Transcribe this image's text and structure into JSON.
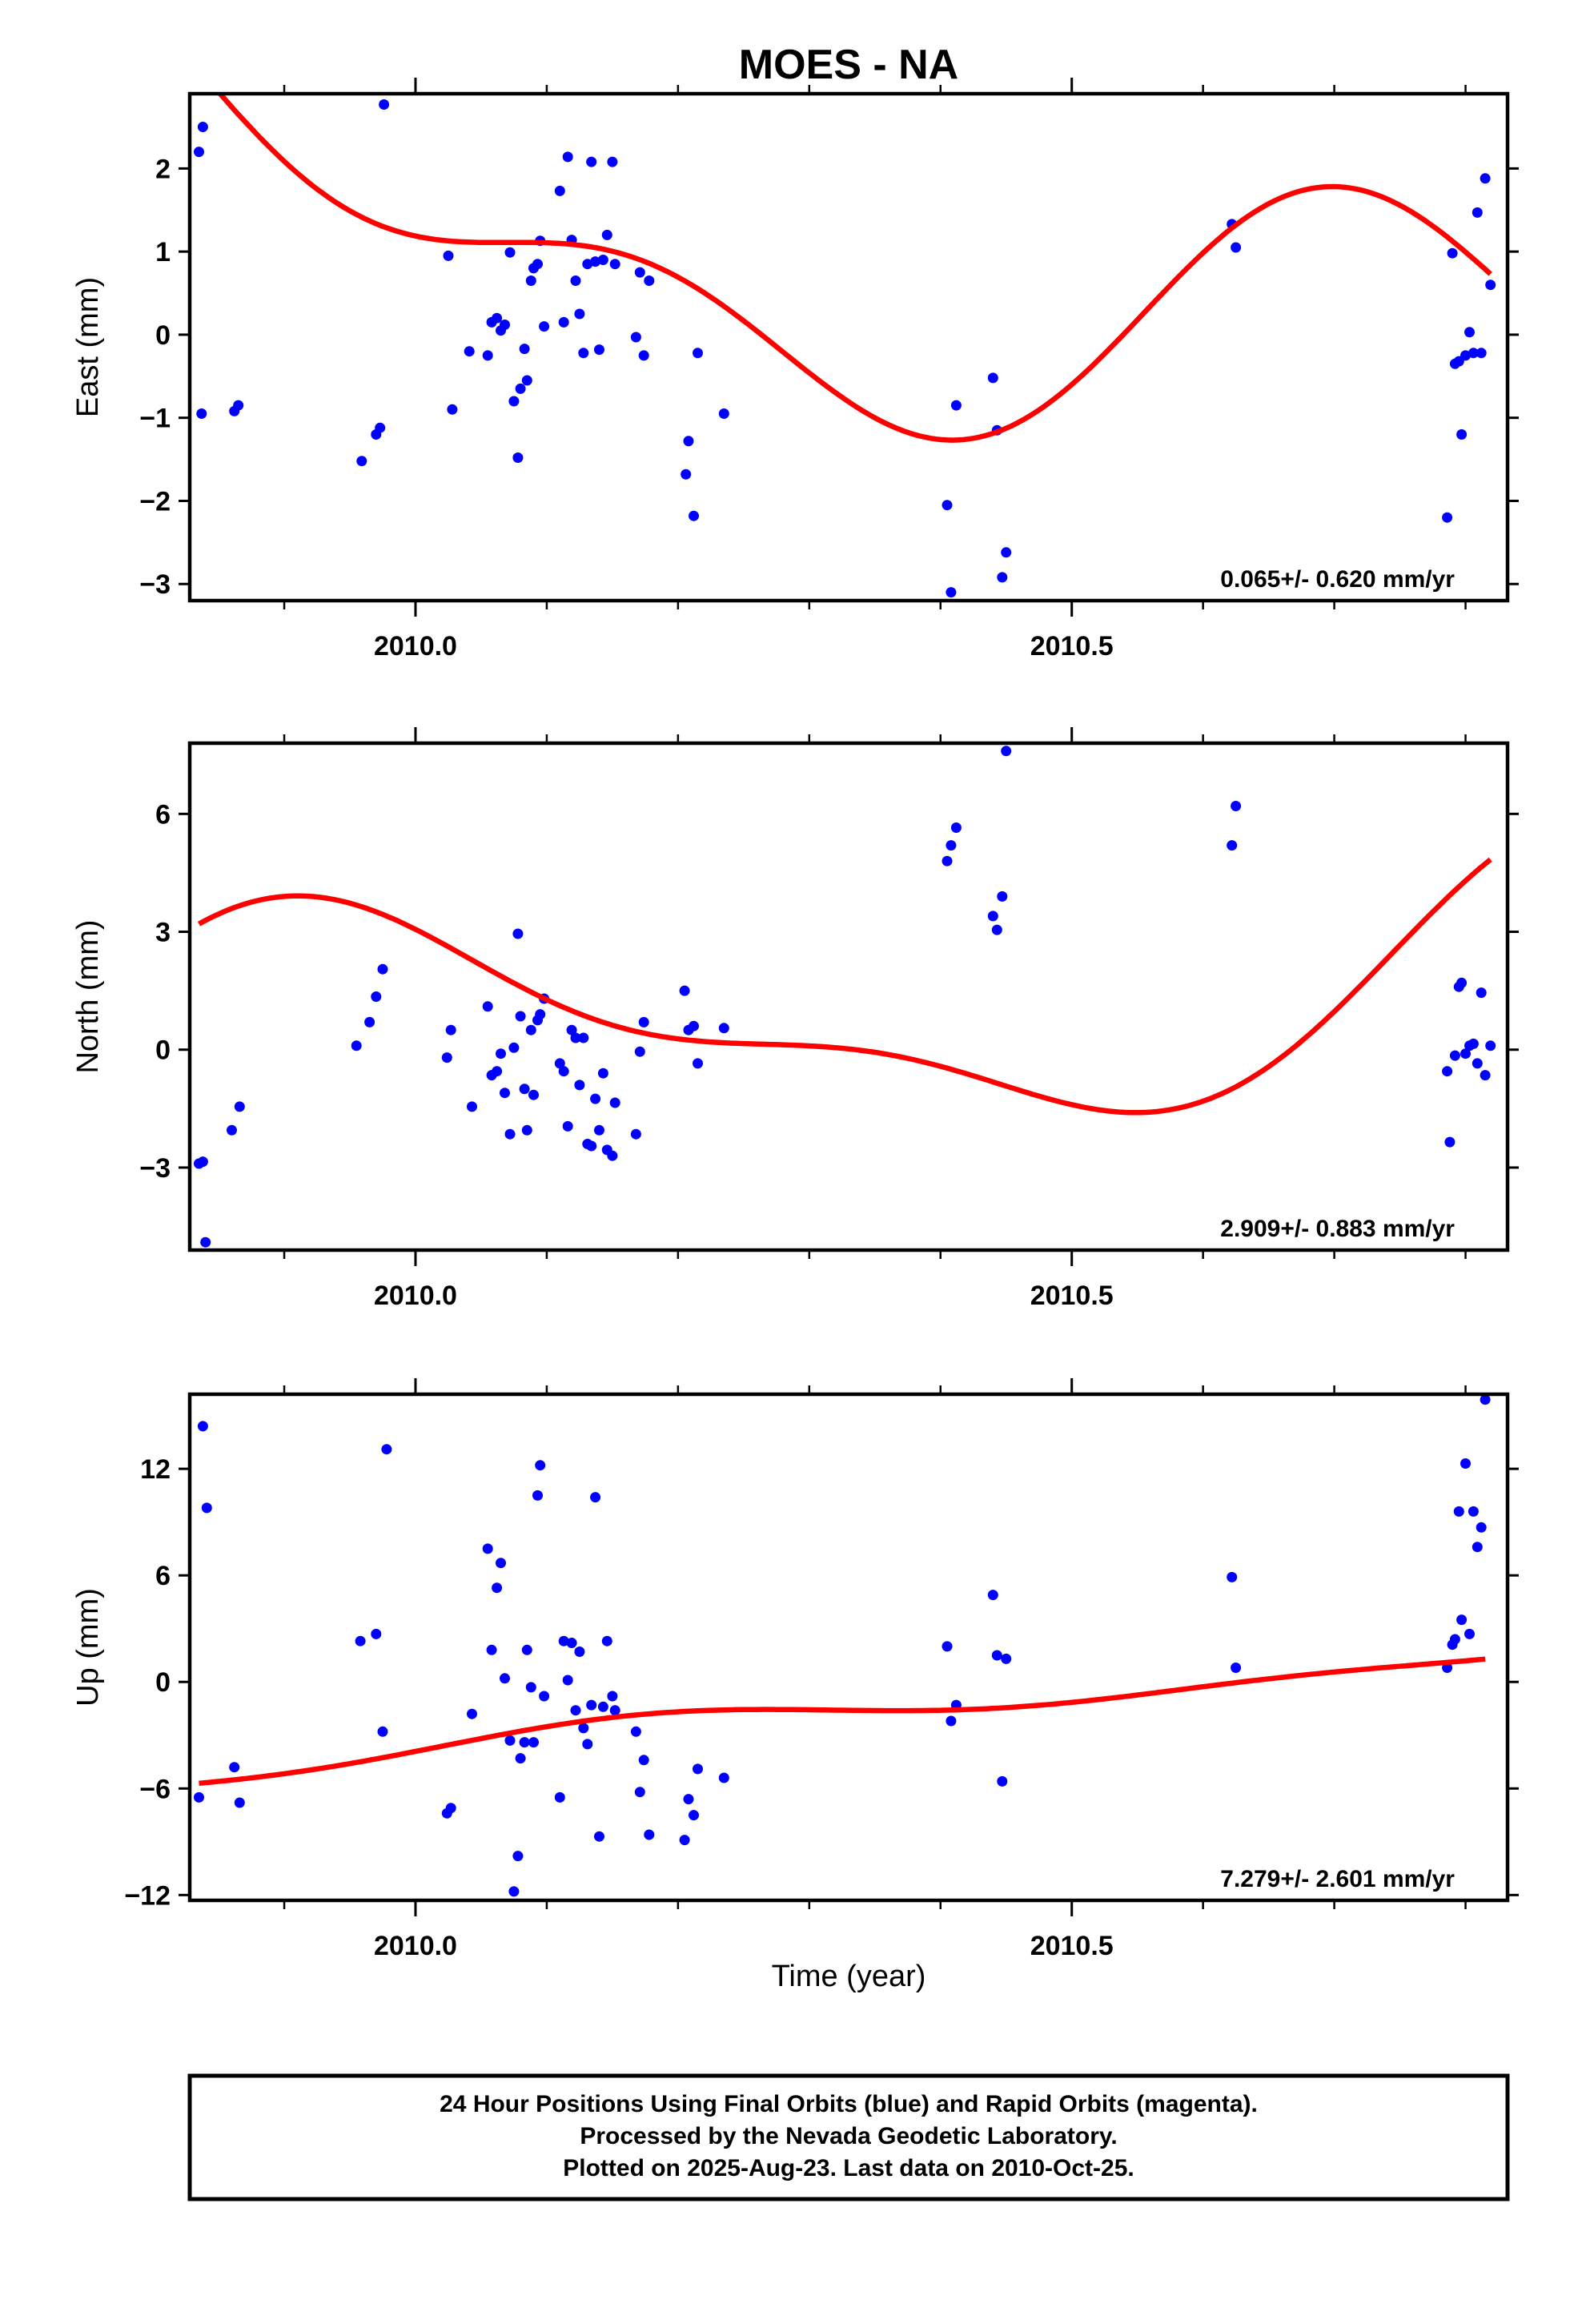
{
  "title": "MOES - NA",
  "xlabel": "Time (year)",
  "footer": {
    "lines": [
      "24 Hour Positions Using Final Orbits (blue) and Rapid Orbits (magenta).",
      "Processed by the Nevada Geodetic Laboratory.",
      "Plotted on 2025-Aug-23. Last data on 2010-Oct-25."
    ]
  },
  "colors": {
    "points": "#0000ff",
    "fit": "#ff0000",
    "frame": "#000000"
  },
  "chart_data": [
    {
      "type": "scatter",
      "title": "MOES - NA",
      "ylabel": "East (mm)",
      "rate_label": "0.065+/- 0.620 mm/yr",
      "xlim": [
        2009.828,
        2010.832
      ],
      "ylim": [
        -3.2,
        2.9
      ],
      "yticks": [
        2,
        1,
        0,
        -1,
        -2,
        -3
      ],
      "ytick_labels": [
        "2",
        "1",
        "0",
        "−1",
        "−2",
        "−3"
      ],
      "xticks_major": [
        2010.0,
        2010.5
      ],
      "xtick_labels": [
        "2010.0",
        "2010.5"
      ],
      "xticks_minor": [
        2009.9,
        2010.1,
        2010.2,
        2010.3,
        2010.4,
        2010.6,
        2010.7,
        2010.8
      ],
      "points": [
        [
          2009.835,
          2.2
        ],
        [
          2009.838,
          2.5
        ],
        [
          2009.837,
          -0.95
        ],
        [
          2009.862,
          -0.92
        ],
        [
          2009.865,
          -0.85
        ],
        [
          2009.976,
          2.77
        ],
        [
          2009.959,
          -1.52
        ],
        [
          2009.97,
          -1.2
        ],
        [
          2009.973,
          -1.12
        ],
        [
          2010.025,
          0.95
        ],
        [
          2010.028,
          -0.9
        ],
        [
          2010.041,
          -0.2
        ],
        [
          2010.055,
          -0.25
        ],
        [
          2010.058,
          0.15
        ],
        [
          2010.062,
          0.2
        ],
        [
          2010.065,
          0.05
        ],
        [
          2010.068,
          0.12
        ],
        [
          2010.072,
          0.99
        ],
        [
          2010.075,
          -0.8
        ],
        [
          2010.078,
          -1.48
        ],
        [
          2010.08,
          -0.65
        ],
        [
          2010.083,
          -0.17
        ],
        [
          2010.085,
          -0.55
        ],
        [
          2010.088,
          0.65
        ],
        [
          2010.09,
          0.8
        ],
        [
          2010.093,
          0.85
        ],
        [
          2010.095,
          1.13
        ],
        [
          2010.098,
          0.1
        ],
        [
          2010.11,
          1.73
        ],
        [
          2010.113,
          0.15
        ],
        [
          2010.116,
          2.14
        ],
        [
          2010.119,
          1.14
        ],
        [
          2010.122,
          0.65
        ],
        [
          2010.125,
          0.25
        ],
        [
          2010.128,
          -0.22
        ],
        [
          2010.131,
          0.85
        ],
        [
          2010.134,
          2.08
        ],
        [
          2010.137,
          0.88
        ],
        [
          2010.14,
          -0.18
        ],
        [
          2010.143,
          0.9
        ],
        [
          2010.146,
          1.2
        ],
        [
          2010.15,
          2.08
        ],
        [
          2010.152,
          0.85
        ],
        [
          2010.168,
          -0.03
        ],
        [
          2010.171,
          0.75
        ],
        [
          2010.174,
          -0.25
        ],
        [
          2010.178,
          0.65
        ],
        [
          2010.208,
          -1.28
        ],
        [
          2010.206,
          -1.68
        ],
        [
          2010.212,
          -2.18
        ],
        [
          2010.215,
          -0.22
        ],
        [
          2010.235,
          -0.95
        ],
        [
          2010.405,
          -2.05
        ],
        [
          2010.408,
          -3.1
        ],
        [
          2010.412,
          -0.85
        ],
        [
          2010.44,
          -0.52
        ],
        [
          2010.443,
          -1.15
        ],
        [
          2010.447,
          -2.92
        ],
        [
          2010.45,
          -2.62
        ],
        [
          2010.622,
          1.33
        ],
        [
          2010.625,
          1.05
        ],
        [
          2010.786,
          -2.2
        ],
        [
          2010.79,
          0.98
        ],
        [
          2010.792,
          -0.35
        ],
        [
          2010.795,
          -0.32
        ],
        [
          2010.797,
          -1.2
        ],
        [
          2010.8,
          -0.25
        ],
        [
          2010.803,
          0.03
        ],
        [
          2010.806,
          -0.22
        ],
        [
          2010.809,
          1.47
        ],
        [
          2010.812,
          -0.22
        ],
        [
          2010.815,
          1.88
        ],
        [
          2010.819,
          0.6
        ]
      ],
      "fit": {
        "a": 0.15,
        "b": -2.0,
        "c": 1.8,
        "d": -0.3,
        "A1": 1.2,
        "B1": -0.15,
        "A2": 0.65,
        "B2": -0.6
      }
    },
    {
      "type": "scatter",
      "ylabel": "North (mm)",
      "rate_label": "2.909+/- 0.883 mm/yr",
      "xlim": [
        2009.828,
        2010.832
      ],
      "ylim": [
        -5.1,
        7.8
      ],
      "yticks": [
        6,
        3,
        0,
        -3
      ],
      "ytick_labels": [
        "6",
        "3",
        "0",
        "−3"
      ],
      "xticks_major": [
        2010.0,
        2010.5
      ],
      "xtick_labels": [
        "2010.0",
        "2010.5"
      ],
      "xticks_minor": [
        2009.9,
        2010.1,
        2010.2,
        2010.3,
        2010.4,
        2010.6,
        2010.7,
        2010.8
      ],
      "points": [
        [
          2009.835,
          -2.9
        ],
        [
          2009.838,
          -2.85
        ],
        [
          2009.84,
          -4.9
        ],
        [
          2009.86,
          -2.05
        ],
        [
          2009.866,
          -1.45
        ],
        [
          2009.955,
          0.1
        ],
        [
          2009.965,
          0.7
        ],
        [
          2009.97,
          1.35
        ],
        [
          2009.975,
          2.05
        ],
        [
          2010.024,
          -0.2
        ],
        [
          2010.027,
          0.5
        ],
        [
          2010.043,
          -1.45
        ],
        [
          2010.055,
          1.1
        ],
        [
          2010.058,
          -0.65
        ],
        [
          2010.062,
          -0.55
        ],
        [
          2010.065,
          -0.1
        ],
        [
          2010.068,
          -1.1
        ],
        [
          2010.072,
          -2.15
        ],
        [
          2010.075,
          0.05
        ],
        [
          2010.078,
          2.95
        ],
        [
          2010.08,
          0.85
        ],
        [
          2010.083,
          -1.0
        ],
        [
          2010.085,
          -2.05
        ],
        [
          2010.088,
          0.5
        ],
        [
          2010.09,
          -1.15
        ],
        [
          2010.093,
          0.75
        ],
        [
          2010.095,
          0.9
        ],
        [
          2010.098,
          1.3
        ],
        [
          2010.11,
          -0.35
        ],
        [
          2010.113,
          -0.55
        ],
        [
          2010.116,
          -1.95
        ],
        [
          2010.119,
          0.5
        ],
        [
          2010.122,
          0.3
        ],
        [
          2010.125,
          -0.9
        ],
        [
          2010.128,
          0.3
        ],
        [
          2010.131,
          -2.4
        ],
        [
          2010.134,
          -2.45
        ],
        [
          2010.137,
          -1.25
        ],
        [
          2010.14,
          -2.05
        ],
        [
          2010.143,
          -0.6
        ],
        [
          2010.146,
          -2.55
        ],
        [
          2010.15,
          -2.7
        ],
        [
          2010.152,
          -1.35
        ],
        [
          2010.168,
          -2.15
        ],
        [
          2010.171,
          -0.05
        ],
        [
          2010.174,
          0.7
        ],
        [
          2010.205,
          1.5
        ],
        [
          2010.208,
          0.5
        ],
        [
          2010.212,
          0.6
        ],
        [
          2010.215,
          -0.35
        ],
        [
          2010.235,
          0.55
        ],
        [
          2010.405,
          4.8
        ],
        [
          2010.408,
          5.2
        ],
        [
          2010.412,
          5.65
        ],
        [
          2010.44,
          3.4
        ],
        [
          2010.443,
          3.05
        ],
        [
          2010.447,
          3.9
        ],
        [
          2010.45,
          7.6
        ],
        [
          2010.622,
          5.2
        ],
        [
          2010.625,
          6.2
        ],
        [
          2010.786,
          -0.55
        ],
        [
          2010.788,
          -2.35
        ],
        [
          2010.792,
          -0.15
        ],
        [
          2010.795,
          1.6
        ],
        [
          2010.797,
          1.7
        ],
        [
          2010.8,
          -0.1
        ],
        [
          2010.803,
          0.1
        ],
        [
          2010.806,
          0.15
        ],
        [
          2010.809,
          -0.35
        ],
        [
          2010.812,
          1.45
        ],
        [
          2010.815,
          -0.65
        ],
        [
          2010.819,
          0.1
        ]
      ],
      "fit": {
        "a": 1.3,
        "b": 3.1,
        "c": 1.7,
        "d": -1.5,
        "A1": 0.5,
        "B1": -2.7,
        "A2": -1.1,
        "B2": 0.0
      }
    },
    {
      "type": "scatter",
      "ylabel": "Up (mm)",
      "rate_label": "7.279+/- 2.601 mm/yr",
      "xlim": [
        2009.828,
        2010.832
      ],
      "ylim": [
        -12.3,
        16.2
      ],
      "yticks": [
        12,
        6,
        0,
        -6,
        -12
      ],
      "ytick_labels": [
        "12",
        "6",
        "0",
        "−6",
        "−12"
      ],
      "xticks_major": [
        2010.0,
        2010.5
      ],
      "xtick_labels": [
        "2010.0",
        "2010.5"
      ],
      "xticks_minor": [
        2009.9,
        2010.1,
        2010.2,
        2010.3,
        2010.4,
        2010.6,
        2010.7,
        2010.8
      ],
      "points": [
        [
          2009.835,
          -6.5
        ],
        [
          2009.838,
          14.4
        ],
        [
          2009.841,
          9.8
        ],
        [
          2009.862,
          -4.8
        ],
        [
          2009.866,
          -6.8
        ],
        [
          2009.958,
          2.3
        ],
        [
          2009.97,
          2.7
        ],
        [
          2009.975,
          -2.8
        ],
        [
          2009.978,
          13.1
        ],
        [
          2010.024,
          -7.4
        ],
        [
          2010.027,
          -7.1
        ],
        [
          2010.043,
          -1.8
        ],
        [
          2010.055,
          7.5
        ],
        [
          2010.058,
          1.8
        ],
        [
          2010.062,
          5.3
        ],
        [
          2010.065,
          6.7
        ],
        [
          2010.068,
          0.2
        ],
        [
          2010.072,
          -3.3
        ],
        [
          2010.075,
          -11.8
        ],
        [
          2010.078,
          -9.8
        ],
        [
          2010.08,
          -4.3
        ],
        [
          2010.083,
          -3.4
        ],
        [
          2010.085,
          1.8
        ],
        [
          2010.088,
          -0.3
        ],
        [
          2010.09,
          -3.4
        ],
        [
          2010.093,
          10.5
        ],
        [
          2010.095,
          12.2
        ],
        [
          2010.098,
          -0.8
        ],
        [
          2010.11,
          -6.5
        ],
        [
          2010.113,
          2.3
        ],
        [
          2010.116,
          0.1
        ],
        [
          2010.119,
          2.2
        ],
        [
          2010.122,
          -1.6
        ],
        [
          2010.125,
          1.7
        ],
        [
          2010.128,
          -2.6
        ],
        [
          2010.131,
          -3.5
        ],
        [
          2010.134,
          -1.3
        ],
        [
          2010.137,
          10.4
        ],
        [
          2010.14,
          -8.7
        ],
        [
          2010.143,
          -1.4
        ],
        [
          2010.146,
          2.3
        ],
        [
          2010.15,
          -0.8
        ],
        [
          2010.152,
          -1.6
        ],
        [
          2010.168,
          -2.8
        ],
        [
          2010.171,
          -6.2
        ],
        [
          2010.174,
          -4.4
        ],
        [
          2010.178,
          -8.6
        ],
        [
          2010.205,
          -8.9
        ],
        [
          2010.208,
          -6.6
        ],
        [
          2010.212,
          -7.5
        ],
        [
          2010.215,
          -4.9
        ],
        [
          2010.235,
          -5.4
        ],
        [
          2010.405,
          2.0
        ],
        [
          2010.408,
          -2.2
        ],
        [
          2010.412,
          -1.3
        ],
        [
          2010.44,
          4.9
        ],
        [
          2010.443,
          1.5
        ],
        [
          2010.447,
          -5.6
        ],
        [
          2010.45,
          1.3
        ],
        [
          2010.622,
          5.9
        ],
        [
          2010.625,
          0.8
        ],
        [
          2010.786,
          0.8
        ],
        [
          2010.79,
          2.1
        ],
        [
          2010.792,
          2.4
        ],
        [
          2010.795,
          9.6
        ],
        [
          2010.797,
          3.5
        ],
        [
          2010.8,
          12.3
        ],
        [
          2010.803,
          2.7
        ],
        [
          2010.806,
          9.6
        ],
        [
          2010.809,
          7.6
        ],
        [
          2010.812,
          8.7
        ],
        [
          2010.815,
          15.9
        ]
      ],
      "fit": {
        "a": -0.55,
        "b": 7.3,
        "c": 0.2,
        "d": -0.3,
        "A1": -0.6,
        "B1": -0.4,
        "A2": 0.3,
        "B2": -0.2
      }
    }
  ]
}
